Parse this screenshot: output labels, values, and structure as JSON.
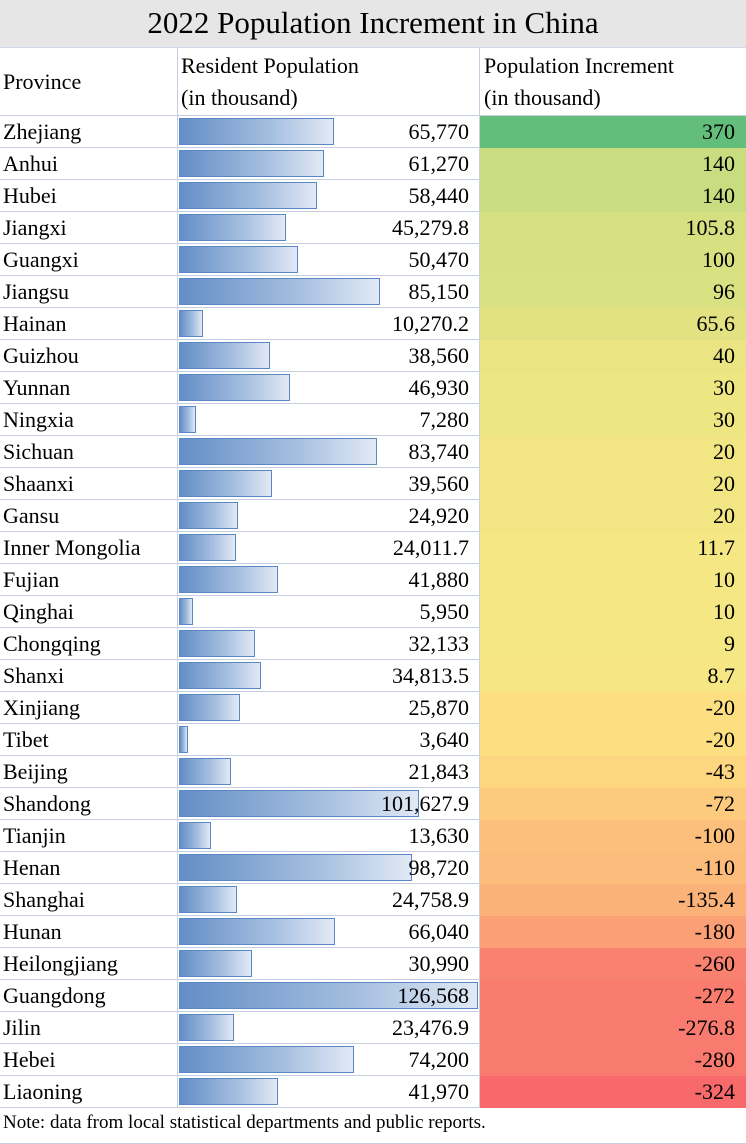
{
  "title": "2022 Population Increment in China",
  "headers": {
    "province": "Province",
    "population_line1": "Resident Population",
    "population_line2": "(in thousand)",
    "increment_line1": "Population Increment",
    "increment_line2": "(in thousand)"
  },
  "rows": [
    {
      "province": "Zhejiang",
      "population": "65,770",
      "pop_value": 65770,
      "increment": "370",
      "inc_value": 370,
      "color": "#63be7b"
    },
    {
      "province": "Anhui",
      "population": "61,270",
      "pop_value": 61270,
      "increment": "140",
      "inc_value": 140,
      "color": "#c9dd80"
    },
    {
      "province": "Hubei",
      "population": "58,440",
      "pop_value": 58440,
      "increment": "140",
      "inc_value": 140,
      "color": "#c9dd80"
    },
    {
      "province": "Jiangxi",
      "population": "45,279.8",
      "pop_value": 45279.8,
      "increment": "105.8",
      "inc_value": 105.8,
      "color": "#d7e081"
    },
    {
      "province": "Guangxi",
      "population": "50,470",
      "pop_value": 50470,
      "increment": "100",
      "inc_value": 100,
      "color": "#d9e081"
    },
    {
      "province": "Jiangsu",
      "population": "85,150",
      "pop_value": 85150,
      "increment": "96",
      "inc_value": 96,
      "color": "#dae182"
    },
    {
      "province": "Hainan",
      "population": "10,270.2",
      "pop_value": 10270.2,
      "increment": "65.6",
      "inc_value": 65.6,
      "color": "#e3e282"
    },
    {
      "province": "Guizhou",
      "population": "38,560",
      "pop_value": 38560,
      "increment": "40",
      "inc_value": 40,
      "color": "#ebe483"
    },
    {
      "province": "Yunnan",
      "population": "46,930",
      "pop_value": 46930,
      "increment": "30",
      "inc_value": 30,
      "color": "#eee583"
    },
    {
      "province": "Ningxia",
      "population": "7,280",
      "pop_value": 7280,
      "increment": "30",
      "inc_value": 30,
      "color": "#eee583"
    },
    {
      "province": "Sichuan",
      "population": "83,740",
      "pop_value": 83740,
      "increment": "20",
      "inc_value": 20,
      "color": "#f1e683"
    },
    {
      "province": "Shaanxi",
      "population": "39,560",
      "pop_value": 39560,
      "increment": "20",
      "inc_value": 20,
      "color": "#f1e683"
    },
    {
      "province": "Gansu",
      "population": "24,920",
      "pop_value": 24920,
      "increment": "20",
      "inc_value": 20,
      "color": "#f1e683"
    },
    {
      "province": "Inner Mongolia",
      "population": "24,011.7",
      "pop_value": 24011.7,
      "increment": "11.7",
      "inc_value": 11.7,
      "color": "#f4e784"
    },
    {
      "province": "Fujian",
      "population": "41,880",
      "pop_value": 41880,
      "increment": "10",
      "inc_value": 10,
      "color": "#f5e784"
    },
    {
      "province": "Qinghai",
      "population": "5,950",
      "pop_value": 5950,
      "increment": "10",
      "inc_value": 10,
      "color": "#f5e784"
    },
    {
      "province": "Chongqing",
      "population": "32,133",
      "pop_value": 32133,
      "increment": "9",
      "inc_value": 9,
      "color": "#f5e784"
    },
    {
      "province": "Shanxi",
      "population": "34,813.5",
      "pop_value": 34813.5,
      "increment": "8.7",
      "inc_value": 8.7,
      "color": "#f6e784"
    },
    {
      "province": "Xinjiang",
      "population": "25,870",
      "pop_value": 25870,
      "increment": "-20",
      "inc_value": -20,
      "color": "#fddf82"
    },
    {
      "province": "Tibet",
      "population": "3,640",
      "pop_value": 3640,
      "increment": "-20",
      "inc_value": -20,
      "color": "#fddf82"
    },
    {
      "province": "Beijing",
      "population": "21,843",
      "pop_value": 21843,
      "increment": "-43",
      "inc_value": -43,
      "color": "#fdd680"
    },
    {
      "province": "Shandong",
      "population": "101,627.9",
      "pop_value": 101627.9,
      "increment": "-72",
      "inc_value": -72,
      "color": "#fdcb7e"
    },
    {
      "province": "Tianjin",
      "population": "13,630",
      "pop_value": 13630,
      "increment": "-100",
      "inc_value": -100,
      "color": "#fcc07c"
    },
    {
      "province": "Henan",
      "population": "98,720",
      "pop_value": 98720,
      "increment": "-110",
      "inc_value": -110,
      "color": "#fcbc7b"
    },
    {
      "province": "Shanghai",
      "population": "24,758.9",
      "pop_value": 24758.9,
      "increment": "-135.4",
      "inc_value": -135.4,
      "color": "#fbb279"
    },
    {
      "province": "Hunan",
      "population": "66,040",
      "pop_value": 66040,
      "increment": "-180",
      "inc_value": -180,
      "color": "#fb9f76"
    },
    {
      "province": "Heilongjiang",
      "population": "30,990",
      "pop_value": 30990,
      "increment": "-260",
      "inc_value": -260,
      "color": "#f98170"
    },
    {
      "province": "Guangdong",
      "population": "126,568",
      "pop_value": 126568,
      "increment": "-272",
      "inc_value": -272,
      "color": "#f97c6f"
    },
    {
      "province": "Jilin",
      "population": "23,476.9",
      "pop_value": 23476.9,
      "increment": "-276.8",
      "inc_value": -276.8,
      "color": "#f97b6f"
    },
    {
      "province": "Hebei",
      "population": "74,200",
      "pop_value": 74200,
      "increment": "-280",
      "inc_value": -280,
      "color": "#f97a6e"
    },
    {
      "province": "Liaoning",
      "population": "41,970",
      "pop_value": 41970,
      "increment": "-324",
      "inc_value": -324,
      "color": "#f8696b"
    }
  ],
  "note": "Note: data from local statistical departments and public reports.",
  "chart_data": {
    "type": "table",
    "title": "2022 Population Increment in China",
    "columns": [
      "Province",
      "Resident Population (in thousand)",
      "Population Increment (in thousand)"
    ],
    "categories": [
      "Zhejiang",
      "Anhui",
      "Hubei",
      "Jiangxi",
      "Guangxi",
      "Jiangsu",
      "Hainan",
      "Guizhou",
      "Yunnan",
      "Ningxia",
      "Sichuan",
      "Shaanxi",
      "Gansu",
      "Inner Mongolia",
      "Fujian",
      "Qinghai",
      "Chongqing",
      "Shanxi",
      "Xinjiang",
      "Tibet",
      "Beijing",
      "Shandong",
      "Tianjin",
      "Henan",
      "Shanghai",
      "Hunan",
      "Heilongjiang",
      "Guangdong",
      "Jilin",
      "Hebei",
      "Liaoning"
    ],
    "series": [
      {
        "name": "Resident Population (in thousand)",
        "visual": "data-bar",
        "values": [
          65770,
          61270,
          58440,
          45279.8,
          50470,
          85150,
          10270.2,
          38560,
          46930,
          7280,
          83740,
          39560,
          24920,
          24011.7,
          41880,
          5950,
          32133,
          34813.5,
          25870,
          3640,
          21843,
          101627.9,
          13630,
          98720,
          24758.9,
          66040,
          30990,
          126568,
          23476.9,
          74200,
          41970
        ]
      },
      {
        "name": "Population Increment (in thousand)",
        "visual": "color-scale (green high, yellow mid, red low)",
        "values": [
          370,
          140,
          140,
          105.8,
          100,
          96,
          65.6,
          40,
          30,
          30,
          20,
          20,
          20,
          11.7,
          10,
          10,
          9,
          8.7,
          -20,
          -20,
          -43,
          -72,
          -100,
          -110,
          -135.4,
          -180,
          -260,
          -272,
          -276.8,
          -280,
          -324
        ]
      }
    ],
    "note": "Note: data from local statistical departments and public reports."
  }
}
